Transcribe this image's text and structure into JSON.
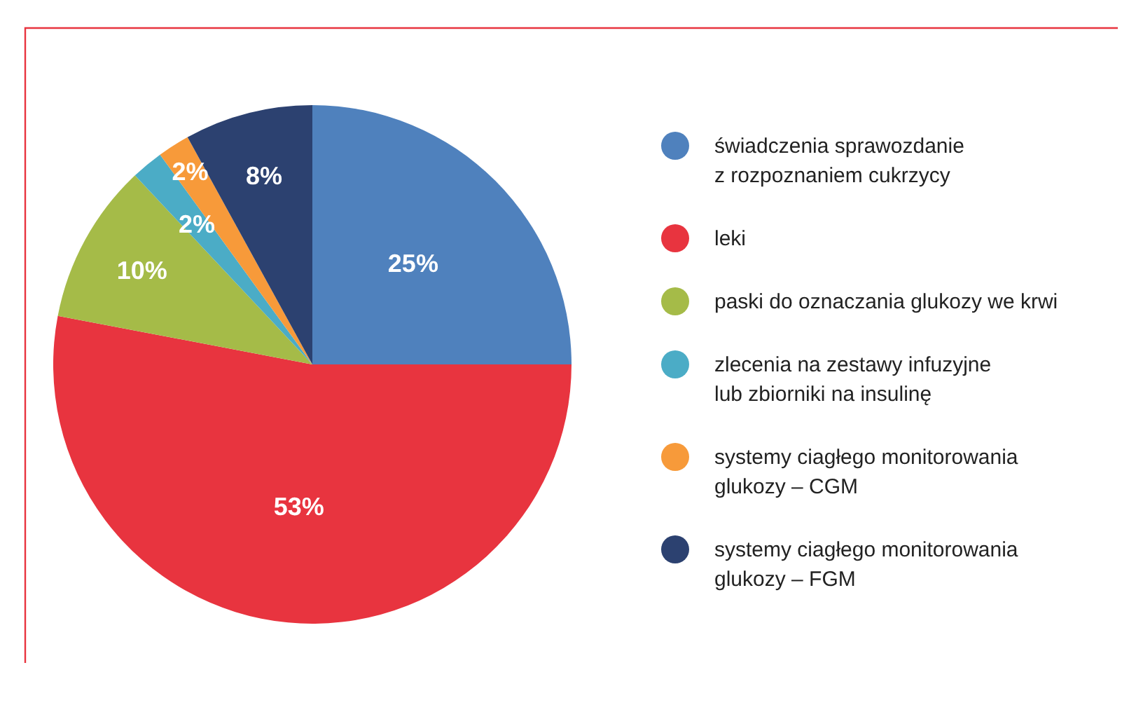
{
  "chart_data": {
    "type": "pie",
    "categories": [
      "świadczenia sprawozdanie\nz rozpoznaniem cukrzycy",
      "leki",
      "paski do oznaczania glukozy we krwi",
      "zlecenia na zestawy infuzyjne\nlub zbiorniki na insulinę",
      "systemy ciagłego monitorowania\nglukozy – CGM",
      "systemy ciagłego monitorowania\nglukozy – FGM"
    ],
    "values": [
      25,
      53,
      10,
      2,
      2,
      8
    ],
    "colors": [
      "#4f81bd",
      "#e8343f",
      "#a5bb48",
      "#4bacc6",
      "#f79a3a",
      "#2c4170"
    ],
    "value_labels": [
      "25%",
      "53%",
      "10%",
      "2%",
      "2%",
      "8%"
    ],
    "legend": "right"
  }
}
